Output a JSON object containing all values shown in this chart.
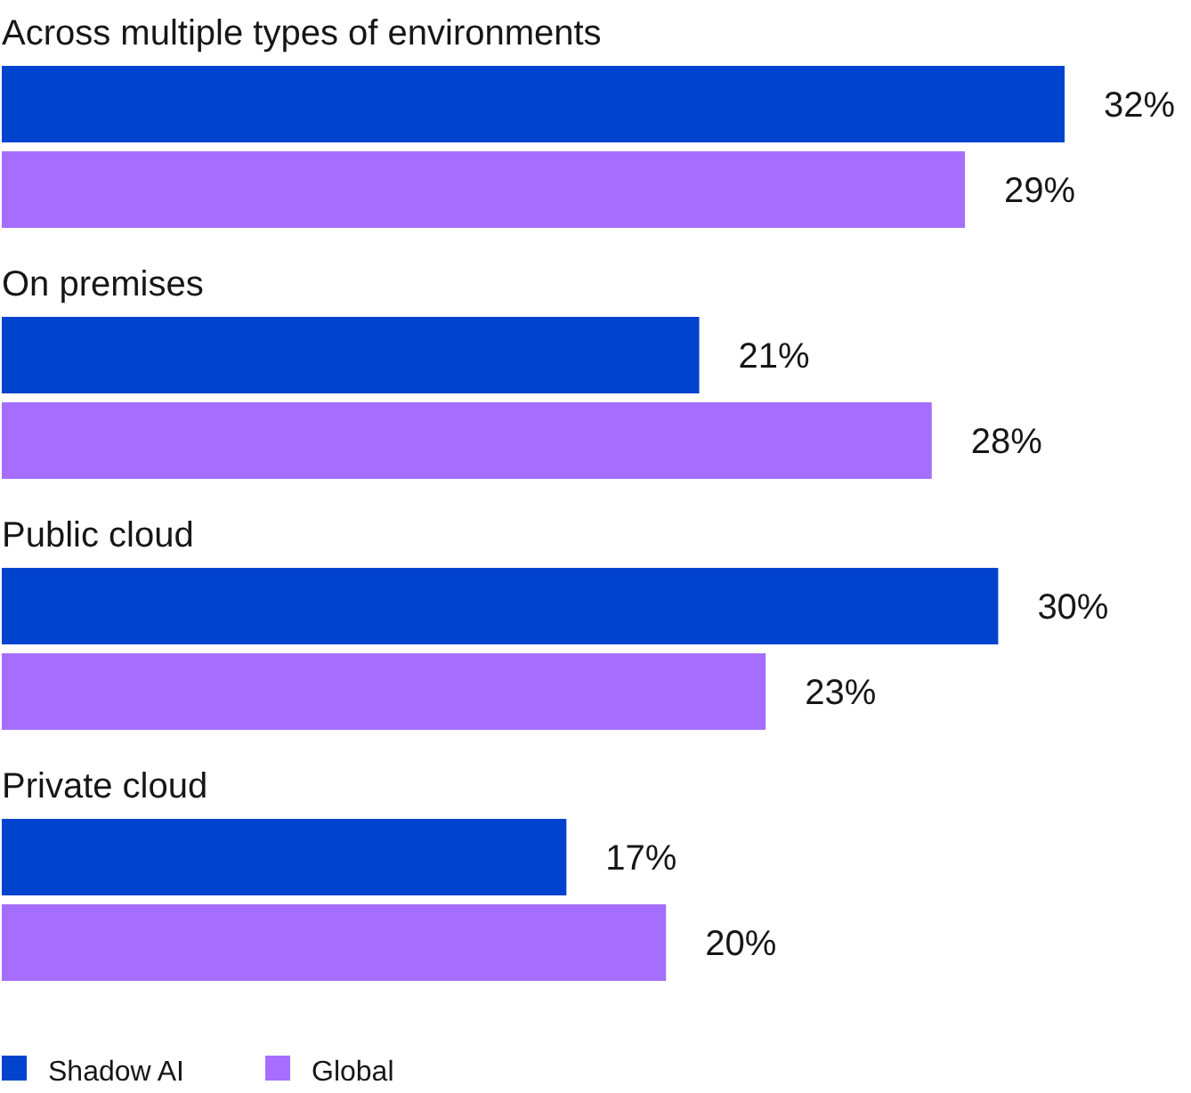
{
  "chart_data": {
    "type": "bar",
    "orientation": "horizontal",
    "categories": [
      "Across multiple types of environments",
      "On premises",
      "Public cloud",
      "Private cloud"
    ],
    "series": [
      {
        "name": "Shadow AI",
        "color": "#0043ce",
        "values": [
          32,
          21,
          30,
          17
        ],
        "value_labels": [
          "32%",
          "21%",
          "30%",
          "17%"
        ]
      },
      {
        "name": "Global",
        "color": "#a56eff",
        "values": [
          29,
          28,
          23,
          20
        ],
        "value_labels": [
          "29%",
          "28%",
          "23%",
          "20%"
        ]
      }
    ],
    "legend": "bottom left"
  }
}
